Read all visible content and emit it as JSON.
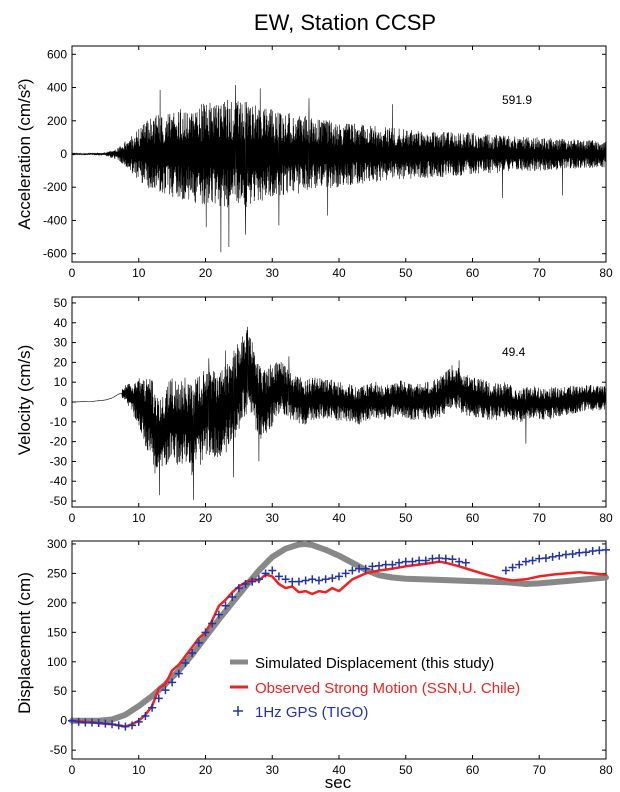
{
  "title": "EW, Station CCSP",
  "chart_data": [
    {
      "type": "line",
      "id": "acceleration",
      "ylabel": "Acceleration (cm/s²)",
      "xlabel": "",
      "xlim": [
        0,
        80
      ],
      "ylim": [
        -650,
        650
      ],
      "x_ticks": [
        0,
        10,
        20,
        30,
        40,
        50,
        60,
        70,
        80
      ],
      "y_ticks": [
        -600,
        -400,
        -200,
        0,
        200,
        400,
        600
      ],
      "annotation": "591.9",
      "grid": false,
      "color": "#000000",
      "envelope": {
        "x": [
          0,
          5,
          7,
          9,
          12,
          15,
          18,
          22,
          26,
          30,
          35,
          40,
          45,
          50,
          55,
          60,
          65,
          70,
          75,
          80
        ],
        "amp": [
          3,
          10,
          40,
          120,
          230,
          260,
          290,
          330,
          320,
          270,
          230,
          200,
          170,
          150,
          140,
          130,
          110,
          100,
          90,
          80
        ]
      },
      "peaks": [
        {
          "x": 22.3,
          "y": -591.9
        },
        {
          "x": 23.5,
          "y": -560
        },
        {
          "x": 24.5,
          "y": 415
        },
        {
          "x": 26.0,
          "y": -485
        },
        {
          "x": 13.2,
          "y": 385
        },
        {
          "x": 20.1,
          "y": -440
        },
        {
          "x": 28.2,
          "y": 395
        },
        {
          "x": 31.0,
          "y": -430
        },
        {
          "x": 35.5,
          "y": 335
        },
        {
          "x": 38.3,
          "y": -370
        },
        {
          "x": 48.0,
          "y": 300
        },
        {
          "x": 64.5,
          "y": -265
        },
        {
          "x": 73.5,
          "y": -250
        }
      ]
    },
    {
      "type": "line",
      "id": "velocity",
      "ylabel": "Velocity (cm/s)",
      "xlabel": "",
      "xlim": [
        0,
        80
      ],
      "ylim": [
        -53,
        53
      ],
      "x_ticks": [
        0,
        10,
        20,
        30,
        40,
        50,
        60,
        70,
        80
      ],
      "y_ticks": [
        -50,
        -40,
        -30,
        -20,
        -10,
        0,
        10,
        20,
        30,
        40,
        50
      ],
      "annotation": "49.4",
      "grid": false,
      "color": "#000000",
      "baseline": {
        "x": [
          0,
          3,
          5,
          6,
          7,
          8,
          9,
          10,
          11,
          12,
          13,
          14,
          15,
          16,
          17,
          18,
          19,
          20,
          21,
          22,
          23,
          24,
          25,
          26,
          27,
          28,
          29,
          30,
          31,
          32,
          33,
          35,
          37,
          39,
          41,
          43,
          45,
          47,
          49,
          51,
          53,
          55,
          57,
          59,
          61,
          63,
          65,
          67,
          69,
          71,
          73,
          75,
          77,
          80
        ],
        "y": [
          0,
          0.3,
          1,
          2,
          4,
          5,
          2,
          0,
          -5,
          -10,
          -20,
          -12,
          -8,
          -12,
          -10,
          -14,
          -10,
          -6,
          -4,
          -8,
          -4,
          2,
          8,
          15,
          10,
          2,
          -2,
          4,
          8,
          5,
          2,
          0,
          2,
          1,
          0,
          -2,
          1,
          0,
          2,
          0,
          1,
          2,
          8,
          4,
          2,
          0,
          1,
          -2,
          0,
          -1,
          0,
          1,
          2,
          2
        ]
      },
      "envelope": {
        "x": [
          0,
          7,
          8,
          10,
          12,
          15,
          18,
          22,
          25,
          28,
          30,
          33,
          40,
          50,
          58,
          65,
          72,
          80
        ],
        "amp": [
          0,
          1,
          4,
          12,
          22,
          20,
          24,
          22,
          24,
          20,
          16,
          12,
          10,
          9,
          11,
          9,
          8,
          6
        ]
      },
      "peaks": [
        {
          "x": 13.1,
          "y": -47
        },
        {
          "x": 18.2,
          "y": -49.4
        },
        {
          "x": 26.3,
          "y": 38
        },
        {
          "x": 25.4,
          "y": 30
        },
        {
          "x": 24.2,
          "y": -38
        },
        {
          "x": 28.0,
          "y": -30
        },
        {
          "x": 23.0,
          "y": 26
        },
        {
          "x": 20.5,
          "y": 22
        },
        {
          "x": 32.5,
          "y": 23
        },
        {
          "x": 58.0,
          "y": 21
        },
        {
          "x": 68.0,
          "y": -21
        }
      ]
    },
    {
      "type": "line",
      "id": "displacement",
      "ylabel": "Displacement (cm)",
      "xlabel": "sec",
      "xlim": [
        0,
        80
      ],
      "ylim": [
        -65,
        305
      ],
      "x_ticks": [
        0,
        10,
        20,
        30,
        40,
        50,
        60,
        70,
        80
      ],
      "y_ticks": [
        -50,
        0,
        50,
        100,
        150,
        200,
        250,
        300
      ],
      "grid": false,
      "legend_position": "lower-center",
      "series": [
        {
          "name": "Simulated Displacement (this study)",
          "color": "#888888",
          "style": "thick-line",
          "x": [
            0,
            4,
            6,
            8,
            10,
            12,
            14,
            16,
            18,
            20,
            22,
            24,
            26,
            28,
            30,
            32,
            34,
            35,
            36,
            38,
            40,
            42,
            44,
            46,
            48,
            50,
            55,
            60,
            65,
            68,
            70,
            75,
            80
          ],
          "y": [
            0,
            0,
            2,
            10,
            25,
            42,
            62,
            85,
            112,
            142,
            172,
            200,
            228,
            255,
            278,
            292,
            299,
            300,
            298,
            290,
            280,
            268,
            256,
            247,
            243,
            241,
            239,
            237,
            235,
            232,
            233,
            238,
            243
          ]
        },
        {
          "name": "Observed Strong Motion (SSN,U. Chile)",
          "color": "#ee2222",
          "style": "line",
          "x": [
            0,
            2,
            4,
            6,
            7,
            8,
            9,
            10,
            11,
            12,
            13,
            14,
            15,
            16,
            17,
            18,
            19,
            20,
            21,
            22,
            23,
            24,
            25,
            26,
            27,
            28,
            29,
            30,
            31,
            32,
            33,
            34,
            35,
            36,
            37,
            38,
            39,
            40,
            42,
            44,
            46,
            48,
            50,
            52,
            54,
            55,
            56,
            58,
            60,
            62,
            64,
            66,
            68,
            70,
            72,
            74,
            76,
            78,
            80
          ],
          "y": [
            0,
            -2,
            -4,
            -6,
            -8,
            -10,
            -6,
            0,
            10,
            25,
            55,
            62,
            85,
            95,
            110,
            125,
            140,
            150,
            170,
            195,
            205,
            218,
            228,
            235,
            240,
            238,
            248,
            245,
            232,
            225,
            228,
            218,
            220,
            215,
            220,
            218,
            225,
            220,
            240,
            250,
            255,
            258,
            262,
            265,
            268,
            270,
            268,
            262,
            255,
            248,
            242,
            238,
            240,
            245,
            248,
            250,
            252,
            250,
            248
          ]
        },
        {
          "name": "1Hz GPS (TIGO)",
          "color": "#2233aa",
          "style": "markers-plus",
          "x": [
            0,
            1,
            2,
            3,
            4,
            5,
            6,
            7,
            8,
            9,
            10,
            11,
            12,
            13,
            14,
            15,
            16,
            17,
            18,
            19,
            20,
            21,
            22,
            23,
            24,
            25,
            26,
            27,
            28,
            29,
            30,
            31,
            32,
            33,
            34,
            35,
            36,
            37,
            38,
            39,
            40,
            41,
            42,
            43,
            44,
            45,
            46,
            47,
            48,
            49,
            50,
            51,
            52,
            53,
            54,
            55,
            56,
            57,
            58,
            59,
            65,
            66,
            67,
            68,
            69,
            70,
            71,
            72,
            73,
            74,
            75,
            76,
            77,
            78,
            79,
            80
          ],
          "y": [
            0,
            -2,
            -3,
            -3,
            -4,
            -5,
            -6,
            -8,
            -10,
            -8,
            -2,
            8,
            22,
            38,
            52,
            65,
            80,
            98,
            115,
            132,
            150,
            165,
            180,
            195,
            210,
            225,
            232,
            236,
            240,
            250,
            255,
            245,
            240,
            236,
            236,
            238,
            240,
            238,
            240,
            242,
            245,
            250,
            255,
            258,
            258,
            262,
            263,
            265,
            265,
            268,
            270,
            270,
            272,
            272,
            275,
            276,
            275,
            274,
            270,
            268,
            255,
            260,
            265,
            270,
            272,
            275,
            276,
            278,
            280,
            282,
            283,
            285,
            286,
            288,
            289,
            290
          ]
        }
      ]
    }
  ]
}
